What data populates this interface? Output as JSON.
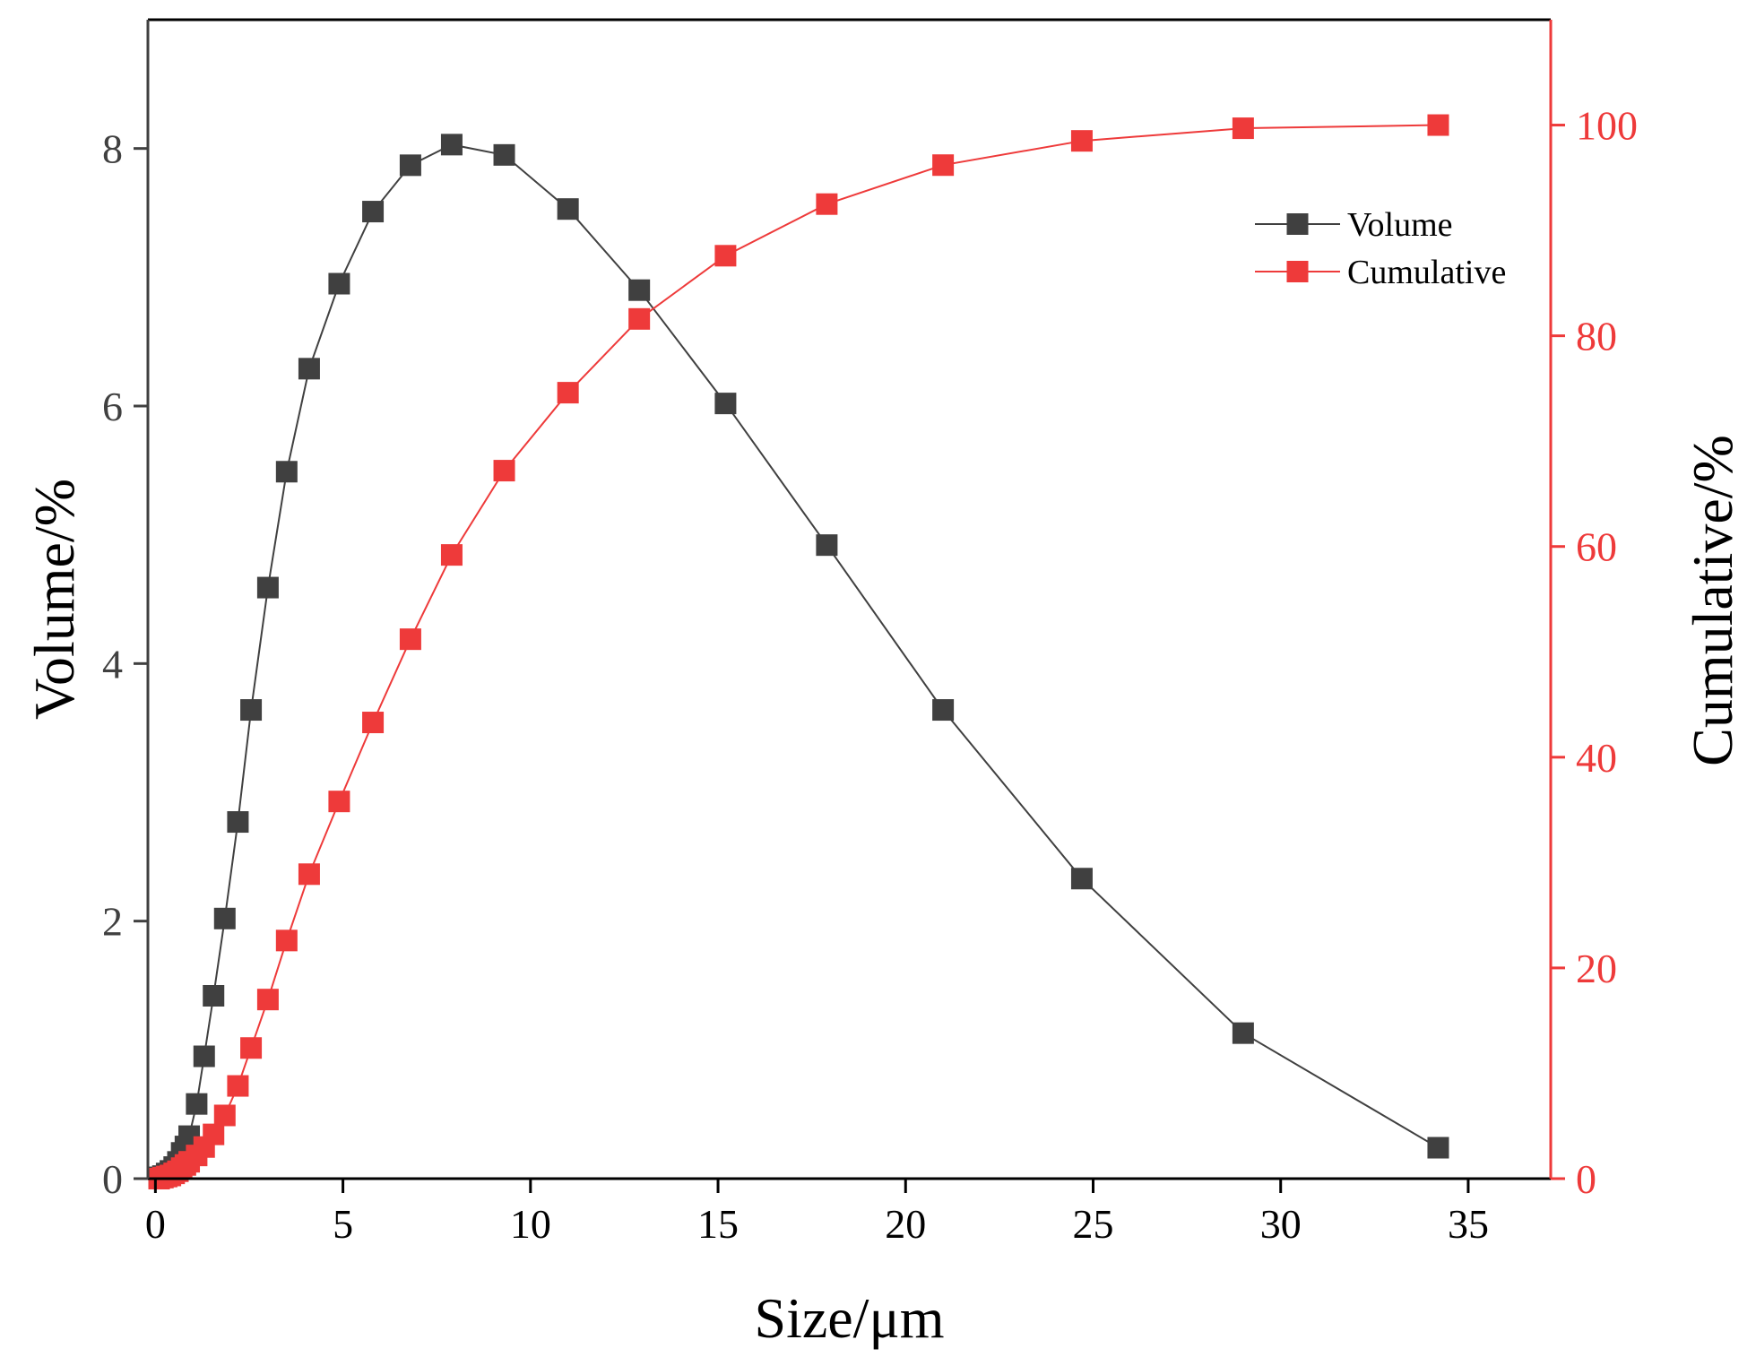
{
  "chart_data": {
    "type": "line",
    "xlabel": "Size/μm",
    "ylabel": "Volume/%",
    "y2label": "Cumulative/%",
    "xlim": [
      -0.2,
      37.2
    ],
    "ylim": [
      0,
      9
    ],
    "y2lim": [
      0,
      110
    ],
    "xticks": [
      0,
      5,
      10,
      15,
      20,
      25,
      30,
      35
    ],
    "yticks": [
      0,
      2,
      4,
      6,
      8
    ],
    "y2ticks": [
      0,
      20,
      40,
      60,
      80,
      100
    ],
    "legend_position": "upper-right",
    "x": [
      0.1,
      0.2,
      0.3,
      0.4,
      0.5,
      0.6,
      0.7,
      0.8,
      0.9,
      1.1,
      1.3,
      1.55,
      1.85,
      2.2,
      2.55,
      3.0,
      3.5,
      4.1,
      4.9,
      5.8,
      6.8,
      7.9,
      9.3,
      11.0,
      12.9,
      15.2,
      17.9,
      21.0,
      24.7,
      29.0,
      34.2
    ],
    "series": [
      {
        "name": "Volume",
        "color": "#404040",
        "axis": "left",
        "values": [
          0.01,
          0.02,
          0.04,
          0.06,
          0.09,
          0.13,
          0.2,
          0.25,
          0.33,
          0.58,
          0.95,
          1.42,
          2.02,
          2.77,
          3.64,
          4.59,
          5.49,
          6.29,
          6.95,
          7.51,
          7.87,
          8.03,
          7.95,
          7.53,
          6.9,
          6.02,
          4.92,
          3.64,
          2.33,
          1.13,
          0.24
        ]
      },
      {
        "name": "Cumulative",
        "color": "#ee3a3a",
        "axis": "right",
        "values": [
          0.0,
          0.1,
          0.2,
          0.3,
          0.5,
          0.7,
          1.0,
          1.3,
          1.6,
          2.2,
          3.0,
          4.2,
          6.0,
          8.8,
          12.4,
          17.0,
          22.6,
          28.9,
          35.8,
          43.3,
          51.2,
          59.2,
          67.2,
          74.6,
          81.6,
          87.6,
          92.5,
          96.2,
          98.5,
          99.7,
          100.0
        ]
      }
    ]
  }
}
